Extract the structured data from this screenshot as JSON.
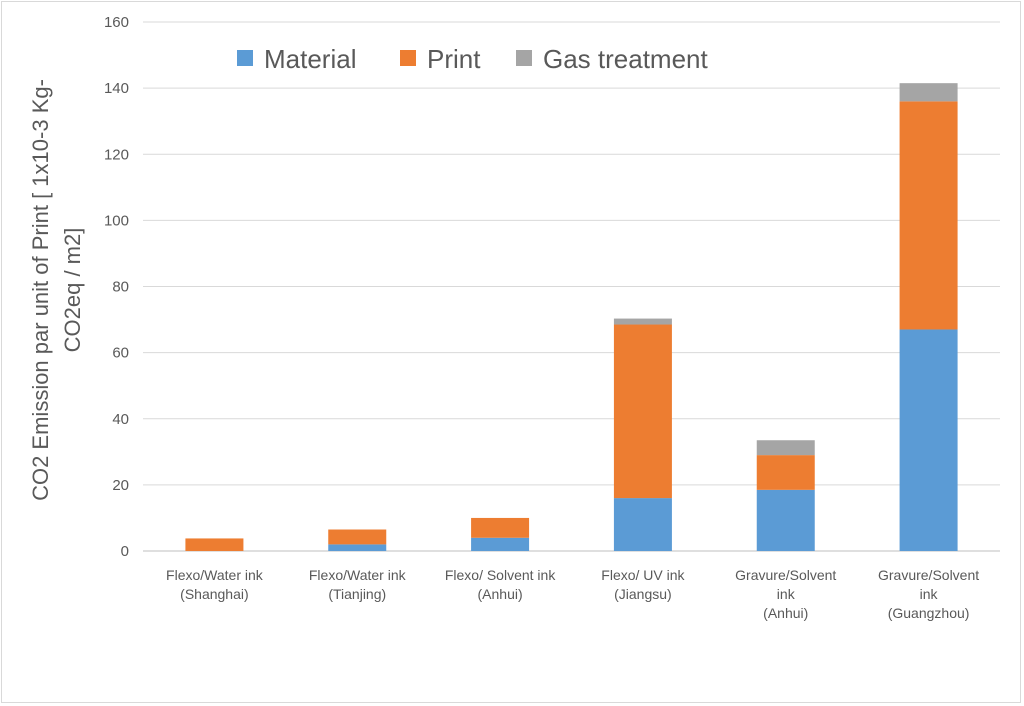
{
  "chart_data": {
    "type": "bar",
    "stacked": true,
    "categories": [
      [
        "Flexo/Water ink",
        "(Shanghai)"
      ],
      [
        "Flexo/Water ink",
        "(Tianjing)"
      ],
      [
        "Flexo/ Solvent ink",
        "(Anhui)"
      ],
      [
        "Flexo/ UV ink",
        "(Jiangsu)"
      ],
      [
        "Gravure/Solvent",
        "ink",
        "(Anhui)"
      ],
      [
        "Gravure/Solvent",
        "ink",
        "(Guangzhou)"
      ]
    ],
    "series": [
      {
        "name": "Material",
        "color": "#5b9bd5",
        "values": [
          0,
          2,
          4,
          16,
          18.5,
          67
        ]
      },
      {
        "name": "Print",
        "color": "#ed7d31",
        "values": [
          3.8,
          4.5,
          6,
          52.5,
          10.5,
          69
        ]
      },
      {
        "name": "Gas treatment",
        "color": "#a5a5a5",
        "values": [
          0,
          0,
          0,
          1.8,
          4.5,
          5.5
        ]
      }
    ],
    "ylabel_lines": [
      "CO2 Emission par unit of Print [ 1x10-3  Kg-",
      "CO2eq / m2]"
    ],
    "xlabel": "",
    "ylim": [
      0,
      160
    ],
    "yticks": [
      0,
      20,
      40,
      60,
      80,
      100,
      120,
      140,
      160
    ],
    "grid": true,
    "legend_position": "top"
  }
}
